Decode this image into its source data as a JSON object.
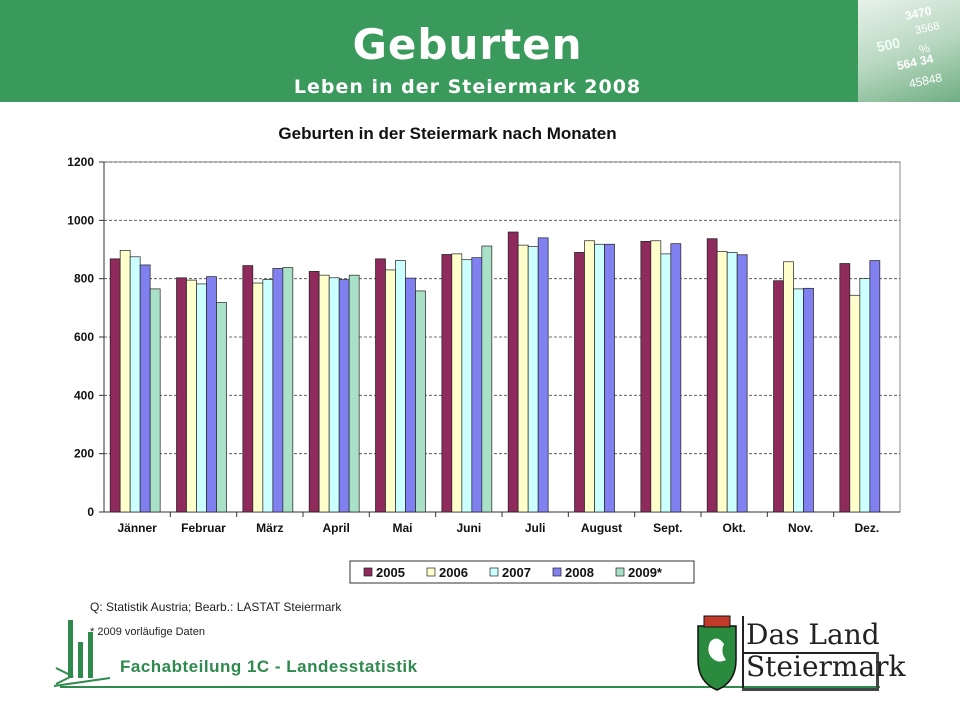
{
  "header": {
    "title": "Geburten",
    "subtitle": "Leben in der Steiermark 2008",
    "image_numbers": [
      "3470",
      "3568",
      "500",
      "%",
      "564 34",
      "45848"
    ]
  },
  "source_note": "Q: Statistik Austria; Bearb.: LASTAT Steiermark",
  "footnote": "* 2009 vorläufige Daten",
  "footer": {
    "department": "Fachabteilung 1C - Landesstatistik"
  },
  "logo": {
    "line1": "Das Land",
    "line2": "Steiermark"
  },
  "chart_data": {
    "type": "bar",
    "title": "Geburten in der Steiermark nach Monaten",
    "xlabel": "",
    "ylabel": "",
    "ylim": [
      0,
      1200
    ],
    "yticks": [
      0,
      200,
      400,
      600,
      800,
      1000,
      1200
    ],
    "grid": true,
    "legend_position": "bottom",
    "categories": [
      "Jänner",
      "Februar",
      "März",
      "April",
      "Mai",
      "Juni",
      "Juli",
      "August",
      "Sept.",
      "Okt.",
      "Nov.",
      "Dez."
    ],
    "series": [
      {
        "name": "2005",
        "color": "#8e2a5c",
        "values": [
          868,
          803,
          845,
          825,
          868,
          883,
          960,
          890,
          928,
          937,
          793,
          852
        ]
      },
      {
        "name": "2006",
        "color": "#ffffcc",
        "values": [
          897,
          795,
          785,
          812,
          830,
          885,
          915,
          930,
          930,
          893,
          858,
          743
        ]
      },
      {
        "name": "2007",
        "color": "#ccffff",
        "values": [
          875,
          782,
          797,
          803,
          862,
          865,
          910,
          918,
          885,
          890,
          765,
          800
        ]
      },
      {
        "name": "2008",
        "color": "#8080f0",
        "values": [
          847,
          807,
          835,
          797,
          802,
          872,
          940,
          918,
          920,
          882,
          767,
          862
        ]
      },
      {
        "name": "2009*",
        "color": "#a8e0c8",
        "values": [
          765,
          718,
          838,
          812,
          758,
          912,
          null,
          null,
          null,
          null,
          null,
          null
        ]
      }
    ]
  }
}
